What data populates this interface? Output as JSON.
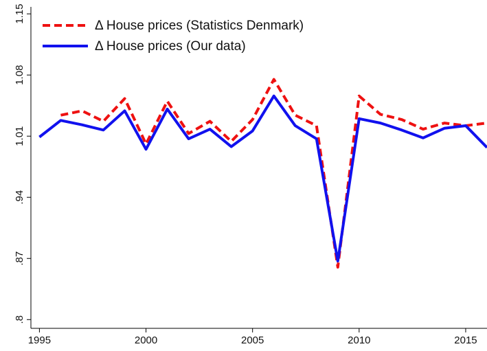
{
  "chart_data": {
    "type": "line",
    "x": [
      1995,
      1996,
      1997,
      1998,
      1999,
      2000,
      2001,
      2002,
      2003,
      2004,
      2005,
      2006,
      2007,
      2008,
      2009,
      2010,
      2011,
      2012,
      2013,
      2014,
      2015,
      2016
    ],
    "series": [
      {
        "name": "Δ House prices (Statistics Denmark)",
        "color": "#ee1111",
        "dash": true,
        "values": [
          null,
          1.034,
          1.039,
          1.027,
          1.053,
          1.001,
          1.05,
          1.013,
          1.027,
          1.004,
          1.029,
          1.075,
          1.034,
          1.022,
          0.86,
          1.056,
          1.035,
          1.029,
          1.018,
          1.025,
          1.022,
          1.025
        ]
      },
      {
        "name": "Δ House prices (Our data)",
        "color": "#1111ee",
        "dash": false,
        "values": [
          1.009,
          1.028,
          1.023,
          1.017,
          1.039,
          0.995,
          1.041,
          1.007,
          1.018,
          0.998,
          1.016,
          1.056,
          1.022,
          1.007,
          0.867,
          1.03,
          1.025,
          1.017,
          1.008,
          1.019,
          1.022,
          0.997
        ]
      }
    ],
    "xlim": [
      1994.6,
      2016
    ],
    "xticks": [
      1995,
      2000,
      2005,
      2010,
      2015
    ],
    "ylim": [
      0.79,
      1.158
    ],
    "yticks": [
      {
        "value": 0.8,
        "label": ".8"
      },
      {
        "value": 0.87,
        "label": ".87"
      },
      {
        "value": 0.94,
        "label": ".94"
      },
      1.01,
      1.08,
      1.15
    ],
    "legend": "top-left"
  }
}
